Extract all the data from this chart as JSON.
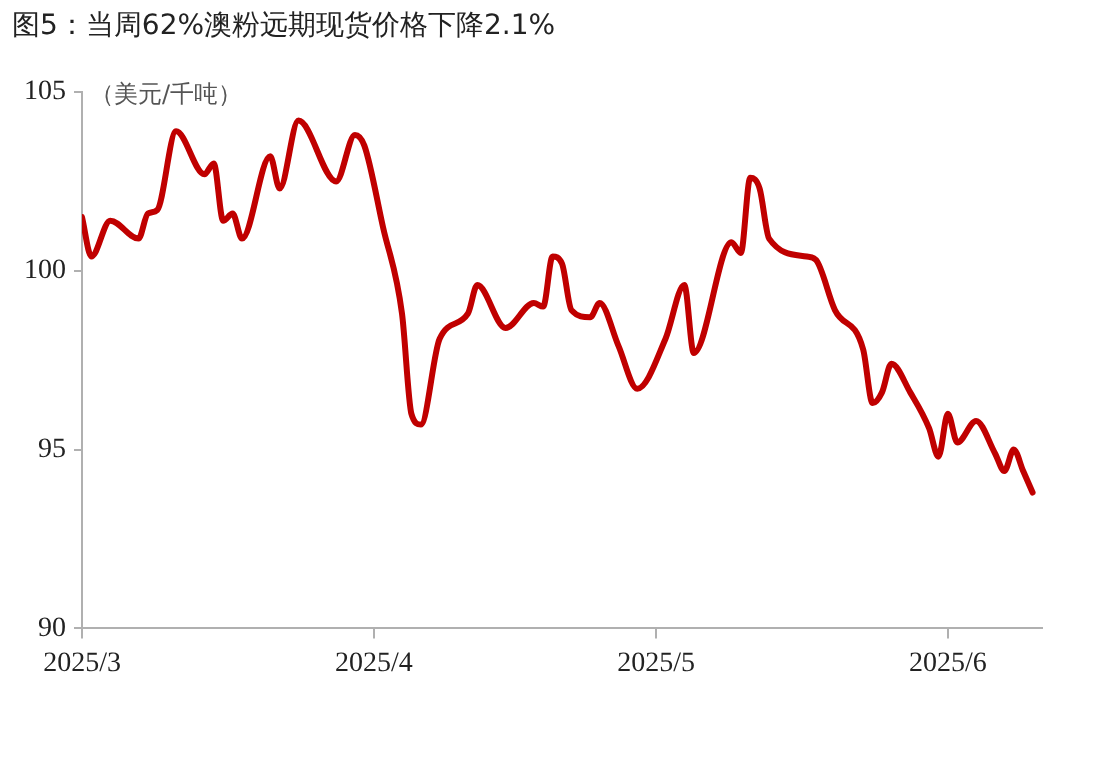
{
  "chart_data": {
    "type": "line",
    "title": "图5：当周62%澳粉远期现货价格下降2.1%",
    "ylabel": "（美元/千吨）",
    "x": [
      "2025-03-01",
      "2025-03-02",
      "2025-03-04",
      "2025-03-07",
      "2025-03-08",
      "2025-03-09",
      "2025-03-11",
      "2025-03-14",
      "2025-03-15",
      "2025-03-16",
      "2025-03-17",
      "2025-03-18",
      "2025-03-21",
      "2025-03-22",
      "2025-03-24",
      "2025-03-28",
      "2025-03-30",
      "2025-03-31",
      "2025-04-02",
      "2025-04-04",
      "2025-04-05",
      "2025-04-06",
      "2025-04-08",
      "2025-04-11",
      "2025-04-12",
      "2025-04-15",
      "2025-04-18",
      "2025-04-19",
      "2025-04-20",
      "2025-04-21",
      "2025-04-22",
      "2025-04-24",
      "2025-04-25",
      "2025-04-27",
      "2025-04-29",
      "2025-05-02",
      "2025-05-04",
      "2025-05-05",
      "2025-05-09",
      "2025-05-10",
      "2025-05-11",
      "2025-05-12",
      "2025-05-13",
      "2025-05-17",
      "2025-05-18",
      "2025-05-20",
      "2025-05-23",
      "2025-05-24",
      "2025-05-25",
      "2025-05-26",
      "2025-05-28",
      "2025-05-30",
      "2025-05-31",
      "2025-06-01",
      "2025-06-02",
      "2025-06-04",
      "2025-06-06",
      "2025-06-07",
      "2025-06-08",
      "2025-06-09",
      "2025-06-10"
    ],
    "series": [
      {
        "color": "#c00000",
        "values": [
          101.5,
          100.4,
          101.4,
          100.9,
          101.6,
          101.7,
          103.9,
          102.7,
          103.0,
          101.4,
          101.6,
          100.9,
          103.2,
          102.3,
          104.2,
          102.5,
          103.8,
          103.5,
          101.2,
          98.8,
          96.0,
          95.7,
          98.1,
          98.8,
          99.6,
          98.4,
          99.1,
          99.0,
          100.4,
          100.2,
          98.9,
          98.7,
          99.1,
          97.9,
          96.7,
          98.1,
          99.6,
          97.7,
          100.8,
          100.5,
          102.6,
          102.3,
          100.9,
          100.4,
          100.3,
          98.9,
          97.8,
          96.3,
          96.6,
          97.4,
          96.6,
          95.6,
          94.8,
          96.0,
          95.2,
          95.8,
          94.9,
          94.4,
          95.0,
          94.4,
          93.8
        ]
      }
    ],
    "xlim": [
      "2025-03-01",
      "2025-06-11"
    ],
    "xticks": [
      {
        "value": "2025-03-01",
        "label": "2025/3"
      },
      {
        "value": "2025-04-01",
        "label": "2025/4"
      },
      {
        "value": "2025-05-01",
        "label": "2025/5"
      },
      {
        "value": "2025-06-01",
        "label": "2025/6"
      }
    ],
    "ylim": [
      90,
      105
    ],
    "yticks": [
      90,
      95,
      100,
      105
    ],
    "grid": false,
    "legend": false,
    "marker": "none",
    "line_style": "solid"
  }
}
